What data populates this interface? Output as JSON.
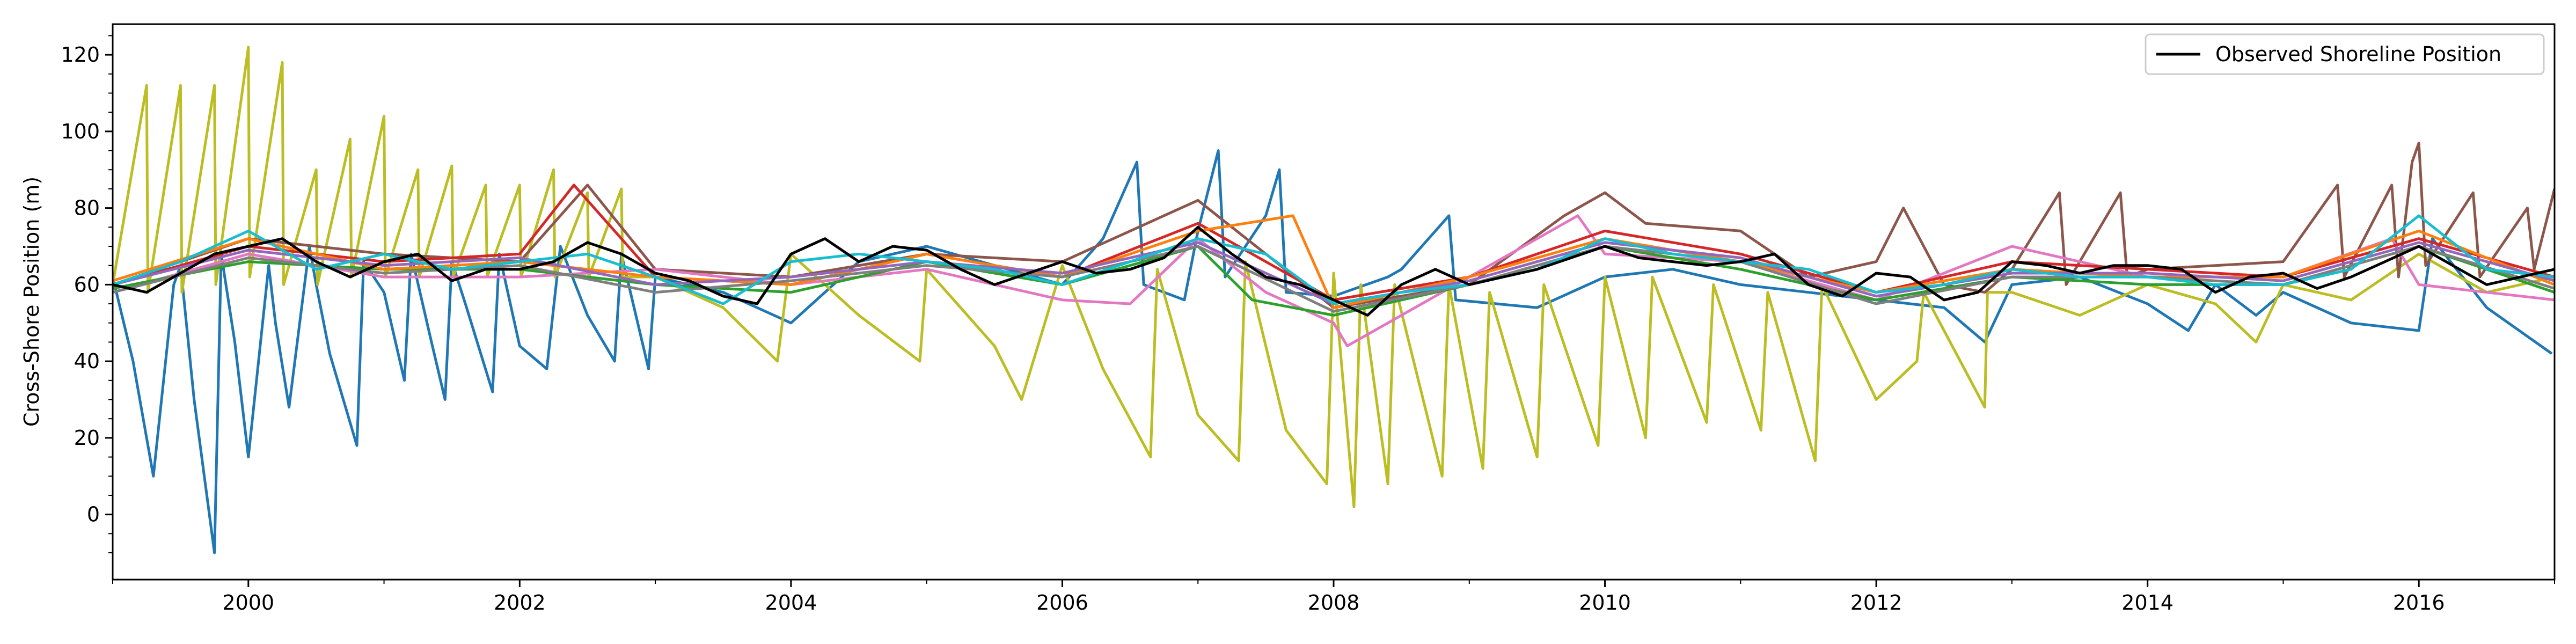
{
  "chart_data": {
    "type": "line",
    "title": "",
    "xlabel": "",
    "ylabel": "Cross-Shore Position (m)",
    "xlim": [
      1999.0,
      2017.0
    ],
    "ylim": [
      -17,
      128
    ],
    "x_ticks": [
      2000,
      2002,
      2004,
      2006,
      2008,
      2010,
      2012,
      2014,
      2016
    ],
    "x_tick_labels": [
      "2000",
      "2002",
      "2004",
      "2006",
      "2008",
      "2010",
      "2012",
      "2014",
      "2016"
    ],
    "y_ticks": [
      0,
      20,
      40,
      60,
      80,
      100,
      120
    ],
    "y_tick_labels": [
      "0",
      "20",
      "40",
      "60",
      "80",
      "100",
      "120"
    ],
    "grid": false,
    "legend": {
      "position": "top-right",
      "entries": [
        "Observed Shoreline Position"
      ]
    },
    "observed": {
      "name": "Observed Shoreline Position",
      "color": "#000000",
      "x": [
        1999.0,
        1999.25,
        1999.5,
        1999.75,
        2000.0,
        2000.25,
        2000.5,
        2000.75,
        2001.0,
        2001.25,
        2001.5,
        2001.75,
        2002.0,
        2002.25,
        2002.5,
        2002.75,
        2003.0,
        2003.25,
        2003.5,
        2003.75,
        2004.0,
        2004.25,
        2004.5,
        2004.75,
        2005.0,
        2005.25,
        2005.5,
        2005.75,
        2006.0,
        2006.25,
        2006.5,
        2006.75,
        2007.0,
        2007.25,
        2007.5,
        2007.75,
        2008.0,
        2008.25,
        2008.5,
        2008.75,
        2009.0,
        2009.25,
        2009.5,
        2009.75,
        2010.0,
        2010.25,
        2010.5,
        2010.75,
        2011.0,
        2011.25,
        2011.5,
        2011.75,
        2012.0,
        2012.25,
        2012.5,
        2012.75,
        2013.0,
        2013.25,
        2013.5,
        2013.75,
        2014.0,
        2014.25,
        2014.5,
        2014.75,
        2015.0,
        2015.25,
        2015.5,
        2015.75,
        2016.0,
        2016.25,
        2016.5,
        2016.75,
        2017.0
      ],
      "y": [
        60,
        58,
        63,
        68,
        70,
        72,
        66,
        62,
        66,
        68,
        61,
        64,
        64,
        66,
        71,
        68,
        63,
        61,
        57,
        55,
        68,
        72,
        66,
        70,
        69,
        64,
        60,
        63,
        66,
        63,
        64,
        67,
        75,
        68,
        62,
        60,
        56,
        52,
        60,
        64,
        60,
        62,
        64,
        67,
        70,
        67,
        66,
        65,
        66,
        68,
        60,
        57,
        63,
        62,
        56,
        58,
        66,
        65,
        63,
        65,
        65,
        64,
        58,
        62,
        63,
        59,
        62,
        66,
        70,
        65,
        60,
        62,
        64
      ]
    },
    "series": [
      {
        "color": "#1f77b4",
        "x": [
          1999.0,
          1999.15,
          1999.3,
          1999.45,
          1999.5,
          1999.6,
          1999.75,
          1999.8,
          1999.9,
          2000.0,
          2000.15,
          2000.2,
          2000.3,
          2000.45,
          2000.5,
          2000.6,
          2000.8,
          2000.85,
          2001.0,
          2001.15,
          2001.2,
          2001.35,
          2001.45,
          2001.5,
          2001.6,
          2001.8,
          2001.85,
          2002.0,
          2002.2,
          2002.3,
          2002.5,
          2002.7,
          2002.75,
          2002.95,
          2003.0,
          2003.5,
          2004.0,
          2004.5,
          2005.0,
          2005.5,
          2006.0,
          2006.3,
          2006.55,
          2006.6,
          2006.9,
          2007.0,
          2007.15,
          2007.2,
          2007.5,
          2007.6,
          2007.65,
          2008.0,
          2008.4,
          2008.5,
          2008.85,
          2008.9,
          2009.5,
          2010.0,
          2010.5,
          2011.0,
          2011.5,
          2012.0,
          2012.5,
          2012.8,
          2013.0,
          2013.5,
          2014.0,
          2014.3,
          2014.5,
          2014.8,
          2015.0,
          2015.5,
          2016.0,
          2016.1,
          2016.5,
          2016.98
        ],
        "y": [
          62,
          40,
          10,
          60,
          65,
          30,
          -10,
          68,
          45,
          15,
          65,
          50,
          28,
          70,
          60,
          42,
          18,
          66,
          58,
          35,
          68,
          45,
          30,
          66,
          55,
          32,
          68,
          44,
          38,
          70,
          52,
          40,
          68,
          38,
          62,
          58,
          50,
          66,
          70,
          65,
          60,
          72,
          92,
          60,
          56,
          74,
          95,
          62,
          78,
          90,
          58,
          57,
          62,
          64,
          78,
          56,
          54,
          62,
          64,
          60,
          58,
          56,
          54,
          45,
          60,
          62,
          55,
          48,
          60,
          52,
          58,
          50,
          48,
          72,
          54,
          42
        ]
      },
      {
        "color": "#bcbd22",
        "x": [
          1999.0,
          1999.25,
          1999.26,
          1999.5,
          1999.51,
          1999.75,
          1999.76,
          2000.0,
          2000.01,
          2000.25,
          2000.26,
          2000.5,
          2000.51,
          2000.75,
          2000.76,
          2001.0,
          2001.01,
          2001.25,
          2001.26,
          2001.5,
          2001.51,
          2001.75,
          2001.76,
          2002.0,
          2002.01,
          2002.25,
          2002.26,
          2002.5,
          2002.51,
          2002.75,
          2002.76,
          2003.0,
          2003.5,
          2003.9,
          2004.0,
          2004.5,
          2004.95,
          2005.0,
          2005.5,
          2005.7,
          2006.0,
          2006.3,
          2006.65,
          2006.7,
          2007.0,
          2007.3,
          2007.35,
          2007.65,
          2007.95,
          2008.0,
          2008.15,
          2008.2,
          2008.4,
          2008.45,
          2008.8,
          2008.85,
          2009.1,
          2009.15,
          2009.5,
          2009.55,
          2009.95,
          2010.0,
          2010.3,
          2010.35,
          2010.75,
          2010.8,
          2011.15,
          2011.2,
          2011.55,
          2011.6,
          2012.0,
          2012.3,
          2012.35,
          2012.8,
          2012.82,
          2013.0,
          2013.5,
          2014.0,
          2014.5,
          2014.8,
          2015.0,
          2015.5,
          2016.0,
          2016.5,
          2017.0
        ],
        "y": [
          60,
          112,
          58,
          112,
          58,
          112,
          60,
          122,
          62,
          118,
          60,
          90,
          60,
          98,
          62,
          104,
          62,
          90,
          62,
          91,
          62,
          86,
          62,
          86,
          62,
          90,
          62,
          84,
          62,
          85,
          62,
          62,
          54,
          40,
          68,
          52,
          40,
          64,
          44,
          30,
          65,
          38,
          15,
          64,
          26,
          14,
          66,
          22,
          8,
          63,
          2,
          60,
          8,
          60,
          10,
          60,
          12,
          58,
          15,
          60,
          18,
          62,
          20,
          62,
          24,
          60,
          22,
          58,
          14,
          60,
          30,
          40,
          58,
          28,
          58,
          58,
          52,
          60,
          55,
          45,
          60,
          56,
          68,
          58,
          62
        ]
      },
      {
        "color": "#8c564b",
        "x": [
          1999.0,
          2000.0,
          2001.0,
          2002.0,
          2002.5,
          2003.0,
          2004.0,
          2005.0,
          2006.0,
          2007.0,
          2008.0,
          2009.0,
          2009.7,
          2010.0,
          2010.3,
          2011.0,
          2011.5,
          2012.0,
          2012.2,
          2012.5,
          2012.8,
          2013.0,
          2013.35,
          2013.4,
          2013.8,
          2013.85,
          2014.0,
          2014.5,
          2015.0,
          2015.4,
          2015.45,
          2015.8,
          2015.85,
          2015.95,
          2016.0,
          2016.05,
          2016.4,
          2016.45,
          2016.8,
          2016.85,
          2017.0
        ],
        "y": [
          60,
          72,
          68,
          66,
          86,
          64,
          62,
          68,
          66,
          82,
          54,
          60,
          78,
          84,
          76,
          74,
          62,
          66,
          80,
          60,
          58,
          64,
          84,
          60,
          84,
          62,
          64,
          65,
          66,
          86,
          62,
          86,
          62,
          92,
          97,
          65,
          84,
          62,
          80,
          64,
          85
        ]
      },
      {
        "color": "#e377c2",
        "x": [
          1999.0,
          2000.0,
          2001.0,
          2002.0,
          2003.0,
          2004.0,
          2005.0,
          2006.0,
          2006.5,
          2007.0,
          2007.5,
          2008.0,
          2008.1,
          2009.0,
          2009.8,
          2010.0,
          2011.0,
          2012.0,
          2013.0,
          2014.0,
          2015.0,
          2015.8,
          2016.0,
          2017.0
        ],
        "y": [
          58,
          68,
          62,
          62,
          64,
          60,
          64,
          56,
          55,
          72,
          58,
          50,
          44,
          62,
          78,
          68,
          66,
          56,
          70,
          62,
          62,
          72,
          60,
          56
        ]
      },
      {
        "color": "#d62728",
        "x": [
          1999.0,
          2000.0,
          2001.0,
          2002.0,
          2002.4,
          2003.0,
          2004.0,
          2005.0,
          2006.0,
          2007.0,
          2008.0,
          2009.0,
          2010.0,
          2011.0,
          2012.0,
          2013.0,
          2014.0,
          2015.0,
          2016.0,
          2017.0
        ],
        "y": [
          60,
          70,
          66,
          68,
          86,
          62,
          60,
          68,
          62,
          76,
          56,
          62,
          74,
          68,
          58,
          66,
          64,
          62,
          72,
          62
        ]
      },
      {
        "color": "#2ca02c",
        "x": [
          1999.0,
          2000.0,
          2001.0,
          2002.0,
          2003.0,
          2004.0,
          2005.0,
          2006.0,
          2007.0,
          2007.4,
          2008.0,
          2009.0,
          2010.0,
          2011.0,
          2012.0,
          2013.0,
          2014.0,
          2015.0,
          2016.0,
          2017.0
        ],
        "y": [
          59,
          66,
          64,
          64,
          60,
          58,
          66,
          60,
          70,
          56,
          52,
          60,
          70,
          64,
          56,
          62,
          60,
          60,
          70,
          58
        ]
      },
      {
        "color": "#ff7f0e",
        "x": [
          1999.0,
          2000.0,
          2001.0,
          2002.0,
          2003.0,
          2004.0,
          2005.0,
          2006.0,
          2007.0,
          2007.7,
          2008.0,
          2009.0,
          2010.0,
          2011.0,
          2012.0,
          2013.0,
          2014.0,
          2015.0,
          2016.0,
          2017.0
        ],
        "y": [
          61,
          72,
          64,
          66,
          62,
          60,
          68,
          62,
          74,
          78,
          54,
          62,
          72,
          66,
          58,
          64,
          62,
          62,
          74,
          60
        ]
      },
      {
        "color": "#9467bd",
        "x": [
          1999.0,
          2000.0,
          2001.0,
          2002.0,
          2003.0,
          2004.0,
          2005.0,
          2006.0,
          2007.0,
          2008.0,
          2009.0,
          2010.0,
          2011.0,
          2012.0,
          2013.0,
          2014.0,
          2015.0,
          2016.0,
          2017.0
        ],
        "y": [
          60,
          69,
          65,
          67,
          60,
          62,
          66,
          63,
          71,
          55,
          61,
          71,
          67,
          57,
          63,
          63,
          61,
          71,
          61
        ]
      },
      {
        "color": "#7f7f7f",
        "x": [
          1999.0,
          2000.0,
          2001.0,
          2002.0,
          2003.0,
          2004.0,
          2005.0,
          2006.0,
          2007.0,
          2008.0,
          2009.0,
          2010.0,
          2011.0,
          2012.0,
          2013.0,
          2014.0,
          2015.0,
          2016.0,
          2017.0
        ],
        "y": [
          58,
          67,
          63,
          65,
          58,
          61,
          65,
          62,
          70,
          53,
          60,
          70,
          66,
          55,
          62,
          62,
          60,
          70,
          59
        ]
      },
      {
        "color": "#17becf",
        "x": [
          1999.0,
          1999.5,
          2000.0,
          2000.5,
          2001.0,
          2001.5,
          2002.0,
          2002.5,
          2003.0,
          2003.5,
          2004.0,
          2004.5,
          2005.0,
          2005.5,
          2006.0,
          2006.5,
          2007.0,
          2007.5,
          2008.0,
          2008.5,
          2009.0,
          2009.5,
          2010.0,
          2010.5,
          2011.0,
          2011.5,
          2012.0,
          2012.5,
          2013.0,
          2013.5,
          2014.0,
          2014.5,
          2015.0,
          2015.5,
          2016.0,
          2016.5,
          2017.0
        ],
        "y": [
          60,
          66,
          74,
          64,
          68,
          64,
          66,
          68,
          62,
          55,
          66,
          68,
          66,
          64,
          60,
          66,
          72,
          68,
          55,
          58,
          60,
          64,
          72,
          68,
          66,
          64,
          58,
          60,
          64,
          62,
          62,
          60,
          60,
          64,
          78,
          64,
          62
        ]
      }
    ]
  }
}
